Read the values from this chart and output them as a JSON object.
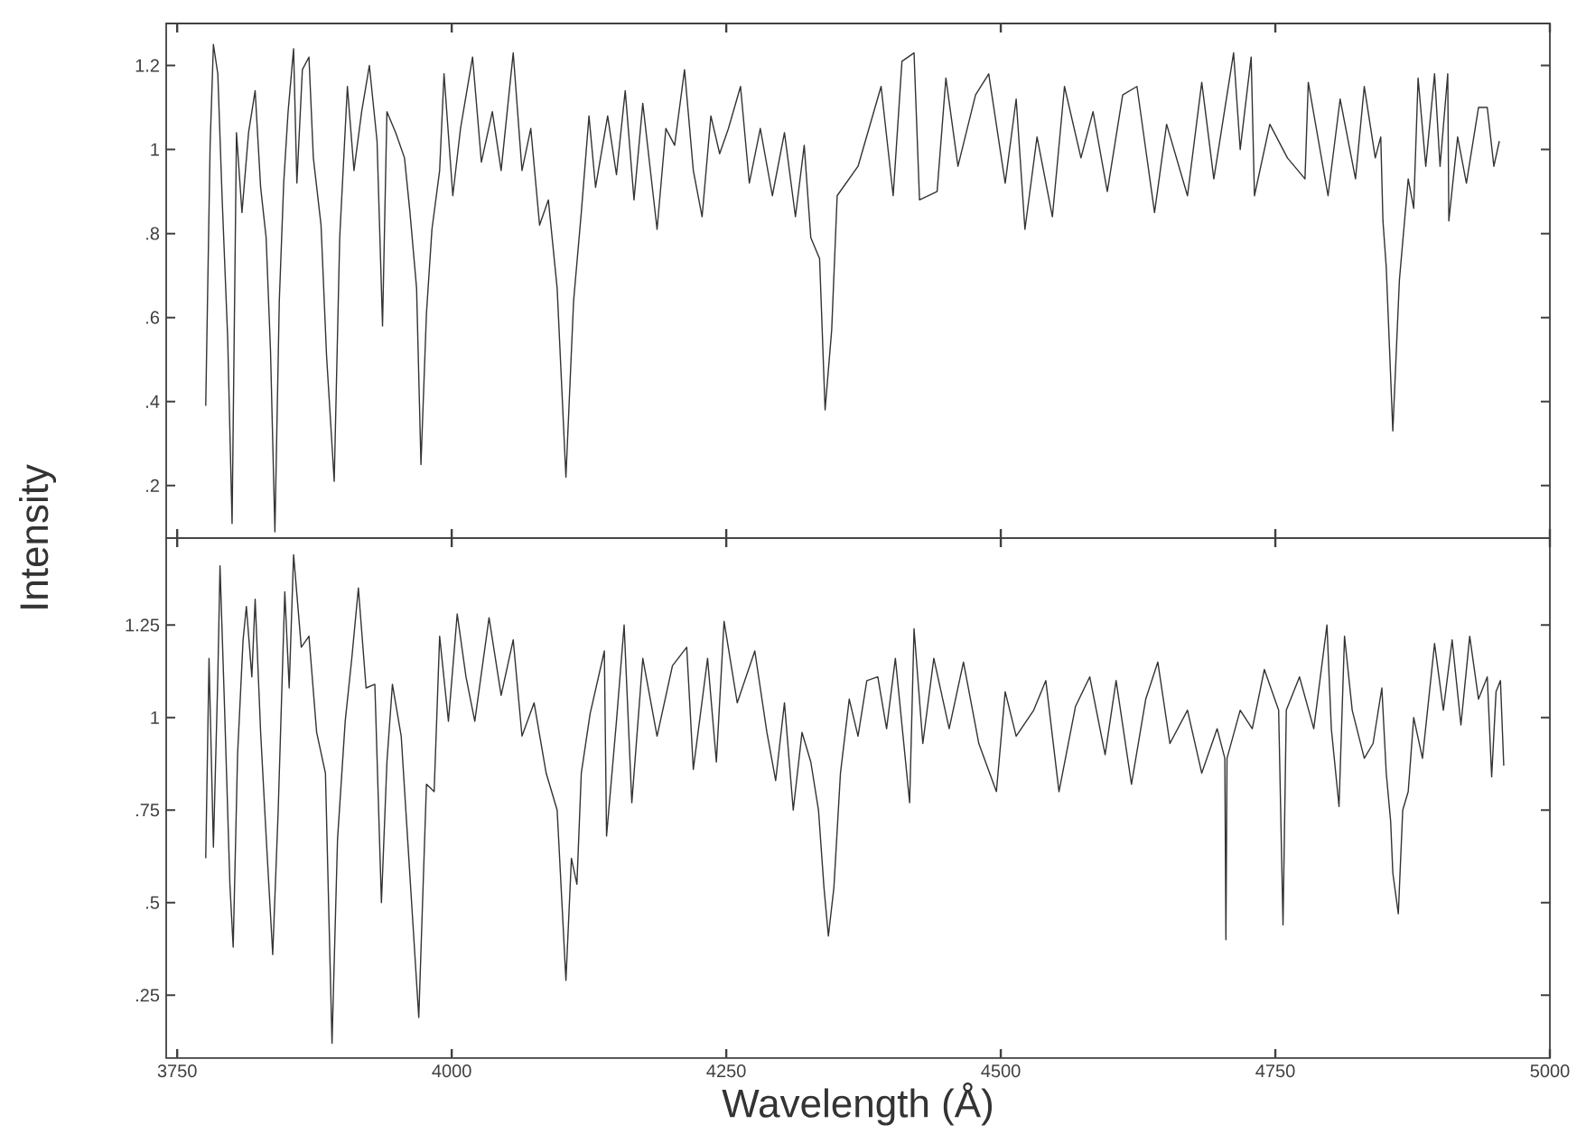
{
  "chart_data": [
    {
      "type": "line",
      "ylabel": "Intensity",
      "tick_labels": "y",
      "color": "#333333",
      "xlim": [
        3740,
        5000
      ],
      "ylim": [
        0.075,
        1.3
      ],
      "xticks": [
        3750,
        4000,
        4250,
        4500,
        4750,
        5000
      ],
      "yticks": [
        {
          "value": 0.2,
          "label": ".2"
        },
        {
          "value": 0.4,
          "label": ".4"
        },
        {
          "value": 0.6,
          "label": ".6"
        },
        {
          "value": 0.8,
          "label": ".8"
        },
        1,
        1.2
      ],
      "x": [
        3776,
        3780,
        3783,
        3787,
        3791,
        3796,
        3800,
        3804,
        3809,
        3815,
        3821,
        3826,
        3831,
        3835,
        3839,
        3843,
        3847,
        3851,
        3856,
        3859,
        3864,
        3870,
        3874,
        3881,
        3886,
        3893,
        3898,
        3905,
        3911,
        3918,
        3925,
        3932,
        3937,
        3941,
        3949,
        3957,
        3962,
        3968,
        3972,
        3977,
        3982,
        3989,
        3993,
        4001,
        4008,
        4019,
        4027,
        4037,
        4045,
        4056,
        4064,
        4072,
        4080,
        4088,
        4096,
        4104,
        4111,
        4118,
        4125,
        4131,
        4142,
        4150,
        4158,
        4166,
        4174,
        4187,
        4195,
        4203,
        4212,
        4220,
        4228,
        4236,
        4244,
        4252,
        4263,
        4271,
        4281,
        4292,
        4303,
        4313,
        4321,
        4327,
        4335,
        4340,
        4346,
        4351,
        4370,
        4391,
        4402,
        4410,
        4421,
        4426,
        4442,
        4450,
        4461,
        4477,
        4489,
        4504,
        4514,
        4522,
        4533,
        4547,
        4558,
        4573,
        4584,
        4597,
        4611,
        4624,
        4640,
        4651,
        4670,
        4683,
        4694,
        4712,
        4718,
        4728,
        4731,
        4745,
        4761,
        4777,
        4780,
        4798,
        4809,
        4823,
        4831,
        4841,
        4846,
        4848,
        4851,
        4857,
        4863,
        4871,
        4876,
        4880,
        4887,
        4895,
        4900,
        4907,
        4908,
        4916,
        4924,
        4935,
        4943,
        4949,
        4954
      ],
      "values": [
        0.39,
        1.01,
        1.25,
        1.18,
        0.88,
        0.55,
        0.11,
        1.04,
        0.85,
        1.04,
        1.14,
        0.91,
        0.79,
        0.52,
        0.09,
        0.64,
        0.92,
        1.09,
        1.24,
        0.92,
        1.19,
        1.22,
        0.98,
        0.82,
        0.51,
        0.21,
        0.79,
        1.15,
        0.95,
        1.09,
        1.2,
        1.02,
        0.58,
        1.09,
        1.04,
        0.98,
        0.85,
        0.67,
        0.25,
        0.61,
        0.81,
        0.95,
        1.18,
        0.89,
        1.05,
        1.22,
        0.97,
        1.09,
        0.95,
        1.23,
        0.95,
        1.05,
        0.82,
        0.88,
        0.67,
        0.22,
        0.64,
        0.85,
        1.08,
        0.91,
        1.08,
        0.94,
        1.14,
        0.88,
        1.11,
        0.81,
        1.05,
        1.01,
        1.19,
        0.95,
        0.84,
        1.08,
        0.99,
        1.05,
        1.15,
        0.92,
        1.05,
        0.89,
        1.04,
        0.84,
        1.01,
        0.79,
        0.74,
        0.38,
        0.57,
        0.89,
        0.96,
        1.15,
        0.89,
        1.21,
        1.23,
        0.88,
        0.9,
        1.17,
        0.96,
        1.13,
        1.18,
        0.92,
        1.12,
        0.81,
        1.03,
        0.84,
        1.15,
        0.98,
        1.09,
        0.9,
        1.13,
        1.15,
        0.85,
        1.06,
        0.89,
        1.16,
        0.93,
        1.23,
        1.0,
        1.22,
        0.89,
        1.06,
        0.98,
        0.93,
        1.16,
        0.89,
        1.12,
        0.93,
        1.15,
        0.98,
        1.03,
        0.83,
        0.72,
        0.33,
        0.69,
        0.93,
        0.86,
        1.17,
        0.96,
        1.18,
        0.96,
        1.18,
        0.83,
        1.03,
        0.92,
        1.1,
        1.1,
        0.96,
        1.02
      ]
    },
    {
      "type": "line",
      "xlabel": "Wavelength (Å)",
      "color": "#333333",
      "xlim": [
        3740,
        5000
      ],
      "ylim": [
        0.08,
        1.485
      ],
      "xticks": [
        3750,
        4000,
        4250,
        4500,
        4750,
        5000
      ],
      "yticks": [
        {
          "value": 0.25,
          "label": ".25"
        },
        {
          "value": 0.5,
          "label": ".5"
        },
        {
          "value": 0.75,
          "label": ".75"
        },
        1,
        1.25
      ],
      "x": [
        3776,
        3779,
        3783,
        3787,
        3789,
        3793,
        3798,
        3801,
        3805,
        3810,
        3813,
        3818,
        3821,
        3826,
        3831,
        3837,
        3842,
        3848,
        3852,
        3856,
        3863,
        3870,
        3877,
        3885,
        3891,
        3896,
        3903,
        3909,
        3915,
        3922,
        3930,
        3936,
        3941,
        3946,
        3954,
        3962,
        3970,
        3977,
        3984,
        3989,
        3997,
        4005,
        4013,
        4021,
        4034,
        4045,
        4056,
        4064,
        4075,
        4086,
        4096,
        4104,
        4109,
        4114,
        4118,
        4126,
        4139,
        4141,
        4150,
        4157,
        4164,
        4174,
        4187,
        4201,
        4214,
        4220,
        4233,
        4241,
        4248,
        4260,
        4276,
        4287,
        4295,
        4303,
        4311,
        4319,
        4327,
        4334,
        4339,
        4343,
        4348,
        4354,
        4362,
        4370,
        4378,
        4388,
        4396,
        4404,
        4417,
        4421,
        4429,
        4439,
        4453,
        4466,
        4480,
        4496,
        4504,
        4514,
        4530,
        4541,
        4553,
        4568,
        4581,
        4595,
        4605,
        4619,
        4632,
        4643,
        4654,
        4670,
        4683,
        4697,
        4704,
        4705,
        4706,
        4718,
        4729,
        4740,
        4753,
        4757,
        4760,
        4772,
        4785,
        4797,
        4801,
        4808,
        4813,
        4820,
        4831,
        4839,
        4847,
        4851,
        4855,
        4857,
        4862,
        4866,
        4871,
        4876,
        4884,
        4895,
        4903,
        4911,
        4919,
        4927,
        4935,
        4943,
        4947,
        4951,
        4955,
        4958
      ],
      "values": [
        0.62,
        1.16,
        0.65,
        1.11,
        1.41,
        1.04,
        0.55,
        0.38,
        0.9,
        1.21,
        1.3,
        1.11,
        1.32,
        0.96,
        0.68,
        0.36,
        0.75,
        1.34,
        1.08,
        1.44,
        1.19,
        1.22,
        0.96,
        0.85,
        0.12,
        0.67,
        0.99,
        1.16,
        1.35,
        1.08,
        1.09,
        0.5,
        0.88,
        1.09,
        0.95,
        0.57,
        0.19,
        0.82,
        0.8,
        1.22,
        0.99,
        1.28,
        1.11,
        0.99,
        1.27,
        1.06,
        1.21,
        0.95,
        1.04,
        0.85,
        0.75,
        0.29,
        0.62,
        0.55,
        0.85,
        1.01,
        1.18,
        0.68,
        0.99,
        1.25,
        0.77,
        1.16,
        0.95,
        1.14,
        1.19,
        0.86,
        1.16,
        0.88,
        1.26,
        1.04,
        1.18,
        0.96,
        0.83,
        1.04,
        0.75,
        0.96,
        0.88,
        0.75,
        0.54,
        0.41,
        0.54,
        0.85,
        1.05,
        0.95,
        1.1,
        1.11,
        0.97,
        1.16,
        0.77,
        1.24,
        0.93,
        1.16,
        0.97,
        1.15,
        0.93,
        0.8,
        1.07,
        0.95,
        1.02,
        1.1,
        0.8,
        1.03,
        1.11,
        0.9,
        1.1,
        0.82,
        1.05,
        1.15,
        0.93,
        1.02,
        0.85,
        0.97,
        0.89,
        0.4,
        0.89,
        1.02,
        0.97,
        1.13,
        1.02,
        0.44,
        1.02,
        1.11,
        0.97,
        1.25,
        0.97,
        0.76,
        1.22,
        1.02,
        0.89,
        0.93,
        1.08,
        0.85,
        0.72,
        0.58,
        0.47,
        0.75,
        0.8,
        1.0,
        0.89,
        1.2,
        1.02,
        1.21,
        0.98,
        1.22,
        1.05,
        1.11,
        0.84,
        1.07,
        1.1,
        0.87
      ]
    }
  ]
}
